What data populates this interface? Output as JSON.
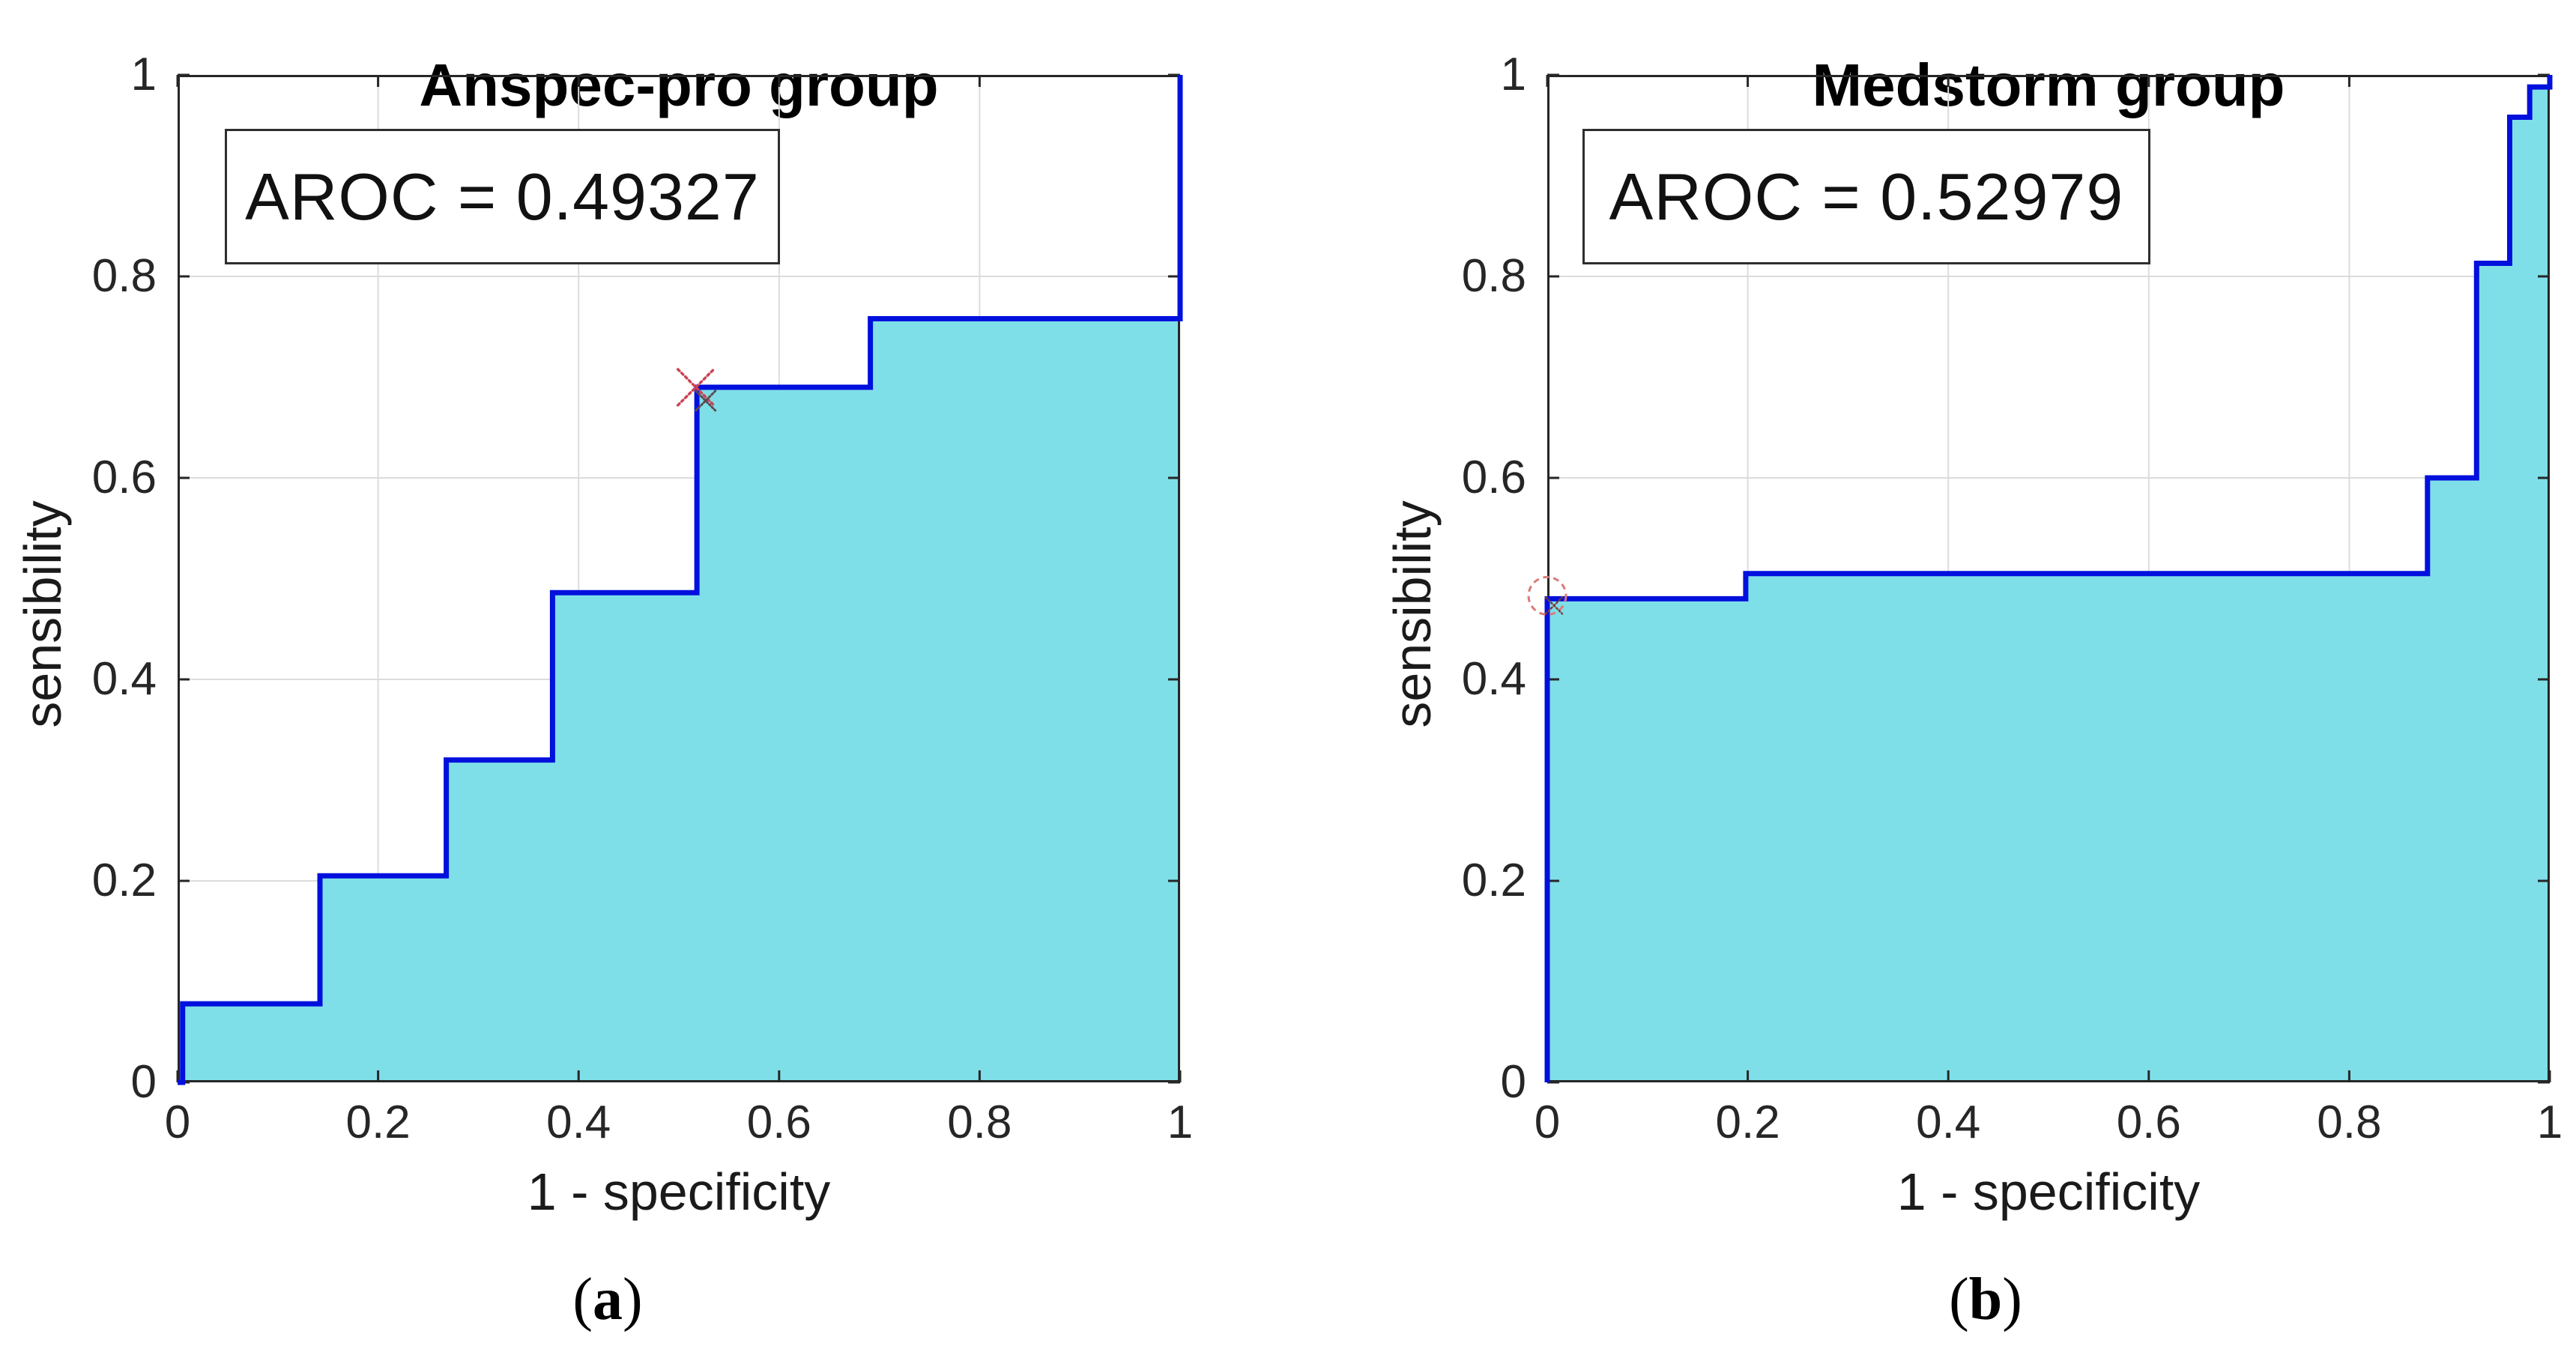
{
  "figure": {
    "background": "#ffffff",
    "axis_color": "#262626",
    "grid_color": "#dcdcdc",
    "curve_color": "#0010dd",
    "fill_color": "#7fdfe8",
    "marker_color": "#cc4455",
    "marker_color_secondary": "#5c4a50",
    "x_ticks": [
      0,
      0.2,
      0.4,
      0.6,
      0.8,
      1
    ],
    "y_ticks": [
      0,
      0.2,
      0.4,
      0.6,
      0.8,
      1
    ],
    "x_tick_labels": [
      "0",
      "0.2",
      "0.4",
      "0.6",
      "0.8",
      "1"
    ],
    "y_tick_labels": [
      "0",
      "0.2",
      "0.4",
      "0.6",
      "0.8",
      "1"
    ]
  },
  "chart_data": [
    {
      "type": "area",
      "title": "Anspec-pro group",
      "annotation": "AROC = 0.49327",
      "aroc": 0.49327,
      "xlabel": "1 - specificity",
      "ylabel": "sensibility",
      "caption_open": "(",
      "caption_letter": "a",
      "caption_close": ")",
      "xlim": [
        0,
        1
      ],
      "ylim": [
        0,
        1
      ],
      "grid": true,
      "curve_points": [
        [
          0,
          0
        ],
        [
          0.005,
          0
        ],
        [
          0.005,
          0.078
        ],
        [
          0.142,
          0.078
        ],
        [
          0.142,
          0.205
        ],
        [
          0.268,
          0.205
        ],
        [
          0.268,
          0.32
        ],
        [
          0.374,
          0.32
        ],
        [
          0.374,
          0.486
        ],
        [
          0.518,
          0.486
        ],
        [
          0.518,
          0.69
        ],
        [
          0.691,
          0.69
        ],
        [
          0.691,
          0.758
        ],
        [
          1,
          0.758
        ],
        [
          1,
          1
        ]
      ],
      "operating_point": {
        "x": 0.517,
        "y": 0.69,
        "marker": "x"
      }
    },
    {
      "type": "area",
      "title": "Medstorm group",
      "annotation": "AROC = 0.52979",
      "aroc": 0.52979,
      "xlabel": "1 - specificity",
      "ylabel": "sensibility",
      "caption_open": "(",
      "caption_letter": "b",
      "caption_close": ")",
      "xlim": [
        0,
        1
      ],
      "ylim": [
        0,
        1
      ],
      "grid": true,
      "curve_points": [
        [
          0,
          0
        ],
        [
          0,
          0.48
        ],
        [
          0.198,
          0.48
        ],
        [
          0.198,
          0.505
        ],
        [
          0.878,
          0.505
        ],
        [
          0.878,
          0.6
        ],
        [
          0.927,
          0.6
        ],
        [
          0.927,
          0.813
        ],
        [
          0.96,
          0.813
        ],
        [
          0.96,
          0.958
        ],
        [
          0.98,
          0.958
        ],
        [
          0.98,
          0.988
        ],
        [
          1,
          0.988
        ],
        [
          1,
          1
        ]
      ],
      "operating_point": {
        "x": 0,
        "y": 0.483,
        "marker": "circle-x"
      }
    }
  ]
}
